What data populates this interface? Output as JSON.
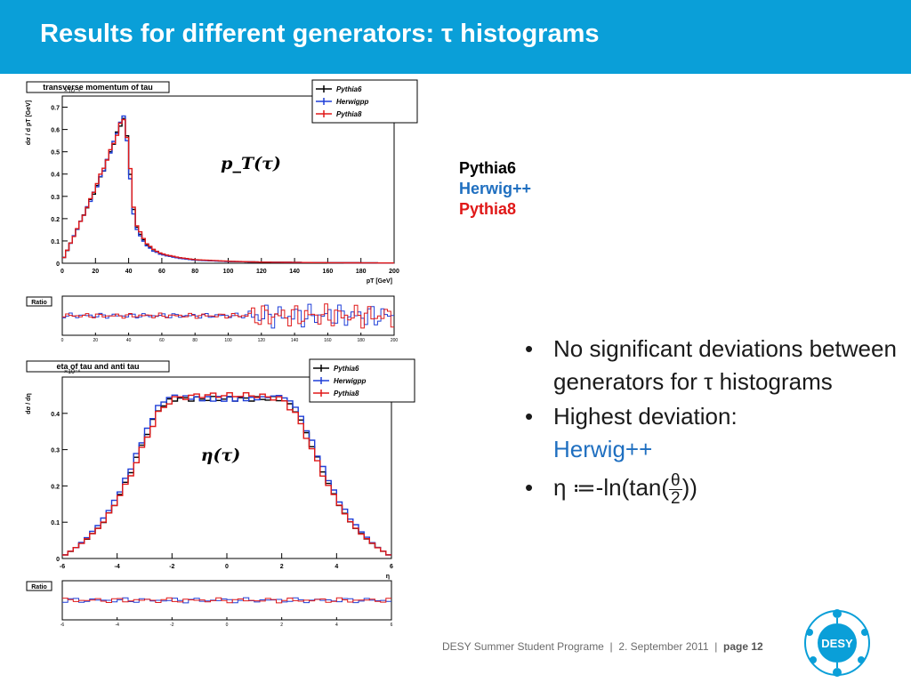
{
  "header": {
    "title": "Results for different generators: τ histograms"
  },
  "colors": {
    "header_bg": "#0a9fd8",
    "pythia6": "#000000",
    "herwig": "#1f3fd8",
    "pythia8": "#e01818",
    "accent_blue": "#1f6fc0"
  },
  "plots": {
    "pt": {
      "title": "transverse momentum of tau",
      "scale": "×10⁻⁶",
      "ylabel": "dσ / d pT [GeV]",
      "xlabel": "pT [GeV]",
      "overlay": "p_T(τ)",
      "ratio_label": "Ratio",
      "legend": [
        "Pythia6",
        "Herwigpp",
        "Pythia8"
      ]
    },
    "eta": {
      "title": "eta of tau and anti tau",
      "scale": "×10⁻⁶",
      "ylabel": "dσ / dη",
      "xlabel": "η",
      "overlay": "η(τ)",
      "ratio_label": "Ratio",
      "legend": [
        "Pythia6",
        "Herwigpp",
        "Pythia8"
      ]
    }
  },
  "chart_data": [
    {
      "type": "line",
      "title": "transverse momentum of tau",
      "xlabel": "pT [GeV]",
      "ylabel": "dσ / d pT [GeV]",
      "xlim": [
        0,
        200
      ],
      "ylim": [
        0,
        0.75
      ],
      "xticks": [
        "0",
        "20",
        "40",
        "60",
        "80",
        "100",
        "120",
        "140",
        "160",
        "180",
        "200"
      ],
      "yticks": [
        "0",
        "0.1",
        "0.2",
        "0.3",
        "0.4",
        "0.5",
        "0.6",
        "0.7"
      ],
      "x": [
        0,
        5,
        10,
        15,
        20,
        25,
        30,
        35,
        37.5,
        40,
        42.5,
        45,
        50,
        55,
        60,
        70,
        80,
        100,
        120,
        150,
        200
      ],
      "series": [
        {
          "name": "Pythia6",
          "values": [
            0.01,
            0.09,
            0.17,
            0.25,
            0.33,
            0.42,
            0.52,
            0.62,
            0.66,
            0.5,
            0.26,
            0.16,
            0.09,
            0.06,
            0.04,
            0.025,
            0.015,
            0.008,
            0.005,
            0.003,
            0.001
          ]
        },
        {
          "name": "Herwigpp",
          "values": [
            0.01,
            0.09,
            0.17,
            0.25,
            0.33,
            0.42,
            0.52,
            0.63,
            0.67,
            0.47,
            0.24,
            0.15,
            0.085,
            0.055,
            0.038,
            0.023,
            0.014,
            0.008,
            0.005,
            0.003,
            0.001
          ]
        },
        {
          "name": "Pythia8",
          "values": [
            0.01,
            0.09,
            0.17,
            0.25,
            0.34,
            0.43,
            0.52,
            0.62,
            0.65,
            0.52,
            0.27,
            0.17,
            0.095,
            0.062,
            0.042,
            0.026,
            0.016,
            0.009,
            0.005,
            0.003,
            0.001
          ]
        }
      ]
    },
    {
      "type": "line",
      "title": "eta of tau and anti tau",
      "xlabel": "η",
      "ylabel": "dσ / dη",
      "xlim": [
        -6,
        6
      ],
      "ylim": [
        0,
        0.5
      ],
      "xticks": [
        "-6",
        "-4",
        "-2",
        "0",
        "2",
        "4",
        "6"
      ],
      "yticks": [
        "0",
        "0.1",
        "0.2",
        "0.3",
        "0.4"
      ],
      "x": [
        -6,
        -5.5,
        -5,
        -4.5,
        -4,
        -3.5,
        -3,
        -2.5,
        -2,
        -1,
        0,
        1,
        2,
        2.5,
        3,
        3.5,
        4,
        4.5,
        5,
        5.5,
        6
      ],
      "series": [
        {
          "name": "Pythia6",
          "values": [
            0.005,
            0.03,
            0.06,
            0.1,
            0.16,
            0.24,
            0.33,
            0.41,
            0.44,
            0.44,
            0.44,
            0.44,
            0.44,
            0.41,
            0.33,
            0.24,
            0.16,
            0.1,
            0.06,
            0.03,
            0.005
          ]
        },
        {
          "name": "Herwigpp",
          "values": [
            0.005,
            0.03,
            0.065,
            0.11,
            0.17,
            0.25,
            0.34,
            0.42,
            0.45,
            0.44,
            0.44,
            0.44,
            0.45,
            0.42,
            0.34,
            0.25,
            0.17,
            0.11,
            0.065,
            0.03,
            0.005
          ]
        },
        {
          "name": "Pythia8",
          "values": [
            0.005,
            0.03,
            0.06,
            0.1,
            0.16,
            0.23,
            0.32,
            0.4,
            0.44,
            0.45,
            0.45,
            0.45,
            0.44,
            0.4,
            0.32,
            0.23,
            0.16,
            0.1,
            0.06,
            0.03,
            0.005
          ]
        }
      ]
    }
  ],
  "generators": {
    "pythia6": "Pythia6",
    "herwig": "Herwig++",
    "pythia8": "Pythia8"
  },
  "bullets": {
    "b1": "No significant deviations between generators for τ histograms",
    "b2_prefix": "Highest deviation:",
    "b2_value": "Herwig++",
    "b3_prefix": "η ≔-ln(tan(",
    "b3_num": "θ",
    "b3_den": "2",
    "b3_suffix": "))",
    "bullet_char": "•"
  },
  "footer": {
    "event": "DESY Summer Student Programe",
    "sep": "|",
    "date": "2. September 2011",
    "page": "page 12"
  },
  "logo": {
    "text": "DESY"
  }
}
